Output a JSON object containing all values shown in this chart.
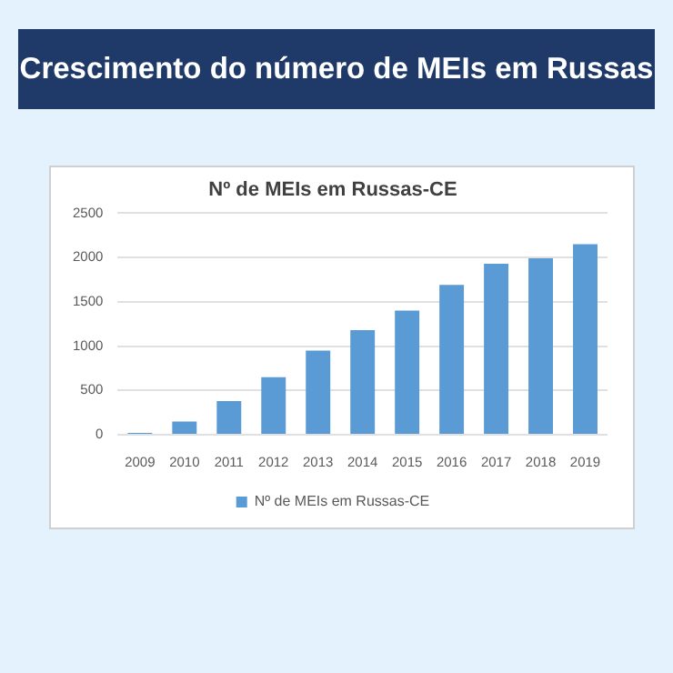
{
  "chart_data": {
    "type": "bar",
    "title": "Crescimento do número de MEIs em Russas",
    "subtitle": "Nº de MEIs em Russas-CE",
    "categories": [
      "2009",
      "2010",
      "2011",
      "2012",
      "2013",
      "2014",
      "2015",
      "2016",
      "2017",
      "2018",
      "2019"
    ],
    "series": [
      {
        "name": "Nº de MEIs em Russas-CE",
        "color": "#5b9bd5",
        "values": [
          20,
          150,
          380,
          650,
          950,
          1180,
          1400,
          1690,
          1930,
          1990,
          2150
        ]
      }
    ],
    "ylim": [
      0,
      2500
    ],
    "yticks": [
      0,
      500,
      1000,
      1500,
      2000,
      2500
    ],
    "grid": "y",
    "legend": "bottom"
  }
}
